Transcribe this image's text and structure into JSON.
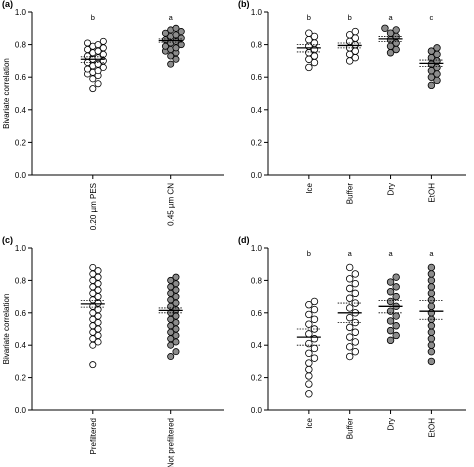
{
  "figure": {
    "ylabel": "Bivariate correlation",
    "yticks": [
      "0.0",
      "0.2",
      "0.4",
      "0.6",
      "0.8",
      "1.0"
    ]
  },
  "chart_data": [
    {
      "panel": "(a)",
      "type": "scatter",
      "ylabel": "Bivariate correlation",
      "ylim": [
        0,
        1
      ],
      "categories": [
        "0.20 µm PES",
        "0.45 µm CN"
      ],
      "letters": [
        "b",
        "a"
      ],
      "series": [
        {
          "category": "0.20 µm PES",
          "fill": "white",
          "mean": 0.71,
          "ci": [
            0.69,
            0.725
          ],
          "values": [
            0.53,
            0.56,
            0.59,
            0.61,
            0.62,
            0.63,
            0.64,
            0.65,
            0.66,
            0.67,
            0.68,
            0.69,
            0.7,
            0.71,
            0.72,
            0.73,
            0.74,
            0.75,
            0.76,
            0.77,
            0.78,
            0.79,
            0.8,
            0.81,
            0.82
          ]
        },
        {
          "category": "0.45 µm CN",
          "fill": "gray",
          "mean": 0.825,
          "ci": [
            0.815,
            0.835
          ],
          "values": [
            0.68,
            0.71,
            0.73,
            0.75,
            0.76,
            0.77,
            0.78,
            0.79,
            0.8,
            0.81,
            0.82,
            0.83,
            0.84,
            0.85,
            0.86,
            0.87,
            0.88,
            0.89,
            0.9
          ]
        }
      ]
    },
    {
      "panel": "(b)",
      "type": "scatter",
      "ylim": [
        0,
        1
      ],
      "categories": [
        "Ice",
        "Buffer",
        "Dry",
        "EtOH"
      ],
      "letters": [
        "b",
        "b",
        "a",
        "c"
      ],
      "series": [
        {
          "category": "Ice",
          "fill": "white",
          "mean": 0.78,
          "ci": [
            0.755,
            0.8
          ],
          "values": [
            0.66,
            0.69,
            0.71,
            0.73,
            0.75,
            0.77,
            0.79,
            0.81,
            0.83,
            0.85,
            0.87
          ]
        },
        {
          "category": "Buffer",
          "fill": "white",
          "mean": 0.795,
          "ci": [
            0.78,
            0.81
          ],
          "values": [
            0.7,
            0.72,
            0.74,
            0.76,
            0.78,
            0.8,
            0.82,
            0.84,
            0.86,
            0.88
          ]
        },
        {
          "category": "Dry",
          "fill": "gray",
          "mean": 0.835,
          "ci": [
            0.82,
            0.85
          ],
          "values": [
            0.75,
            0.77,
            0.79,
            0.81,
            0.83,
            0.85,
            0.87,
            0.89,
            0.9
          ]
        },
        {
          "category": "EtOH",
          "fill": "gray",
          "mean": 0.685,
          "ci": [
            0.665,
            0.705
          ],
          "values": [
            0.55,
            0.58,
            0.6,
            0.62,
            0.64,
            0.66,
            0.68,
            0.7,
            0.72,
            0.74,
            0.76,
            0.78
          ]
        }
      ]
    },
    {
      "panel": "(c)",
      "type": "scatter",
      "ylabel": "Bivariate correlation",
      "ylim": [
        0,
        1
      ],
      "categories": [
        "Prefiltered",
        "Not prefiltered"
      ],
      "letters": [
        "",
        ""
      ],
      "series": [
        {
          "category": "Prefiltered",
          "fill": "white",
          "mean": 0.655,
          "ci": [
            0.635,
            0.675
          ],
          "values": [
            0.28,
            0.4,
            0.42,
            0.44,
            0.46,
            0.48,
            0.5,
            0.52,
            0.54,
            0.56,
            0.58,
            0.6,
            0.62,
            0.64,
            0.66,
            0.68,
            0.7,
            0.72,
            0.74,
            0.76,
            0.78,
            0.8,
            0.82,
            0.84,
            0.86,
            0.88
          ]
        },
        {
          "category": "Not prefiltered",
          "fill": "gray",
          "mean": 0.615,
          "ci": [
            0.6,
            0.63
          ],
          "values": [
            0.33,
            0.36,
            0.4,
            0.42,
            0.44,
            0.46,
            0.48,
            0.5,
            0.52,
            0.54,
            0.56,
            0.58,
            0.6,
            0.62,
            0.64,
            0.66,
            0.68,
            0.7,
            0.72,
            0.74,
            0.76,
            0.78,
            0.8,
            0.82
          ]
        }
      ]
    },
    {
      "panel": "(d)",
      "type": "scatter",
      "ylim": [
        0,
        1
      ],
      "categories": [
        "Ice",
        "Buffer",
        "Dry",
        "EtOH"
      ],
      "letters": [
        "b",
        "a",
        "a",
        "a"
      ],
      "series": [
        {
          "category": "Ice",
          "fill": "white",
          "mean": 0.45,
          "ci": [
            0.4,
            0.5
          ],
          "values": [
            0.1,
            0.16,
            0.21,
            0.25,
            0.29,
            0.32,
            0.35,
            0.38,
            0.41,
            0.44,
            0.47,
            0.5,
            0.53,
            0.56,
            0.59,
            0.62,
            0.65,
            0.67
          ]
        },
        {
          "category": "Buffer",
          "fill": "white",
          "mean": 0.6,
          "ci": [
            0.54,
            0.66
          ],
          "values": [
            0.33,
            0.36,
            0.39,
            0.42,
            0.45,
            0.48,
            0.51,
            0.54,
            0.57,
            0.6,
            0.63,
            0.66,
            0.69,
            0.72,
            0.75,
            0.78,
            0.81,
            0.84,
            0.88
          ]
        },
        {
          "category": "Dry",
          "fill": "gray",
          "mean": 0.64,
          "ci": [
            0.6,
            0.675
          ],
          "values": [
            0.43,
            0.46,
            0.49,
            0.52,
            0.55,
            0.58,
            0.61,
            0.64,
            0.67,
            0.7,
            0.73,
            0.76,
            0.79,
            0.82
          ]
        },
        {
          "category": "EtOH",
          "fill": "gray",
          "mean": 0.61,
          "ci": [
            0.56,
            0.675
          ],
          "values": [
            0.3,
            0.36,
            0.4,
            0.44,
            0.48,
            0.52,
            0.56,
            0.6,
            0.64,
            0.68,
            0.72,
            0.76,
            0.8,
            0.84,
            0.88
          ]
        }
      ]
    }
  ]
}
